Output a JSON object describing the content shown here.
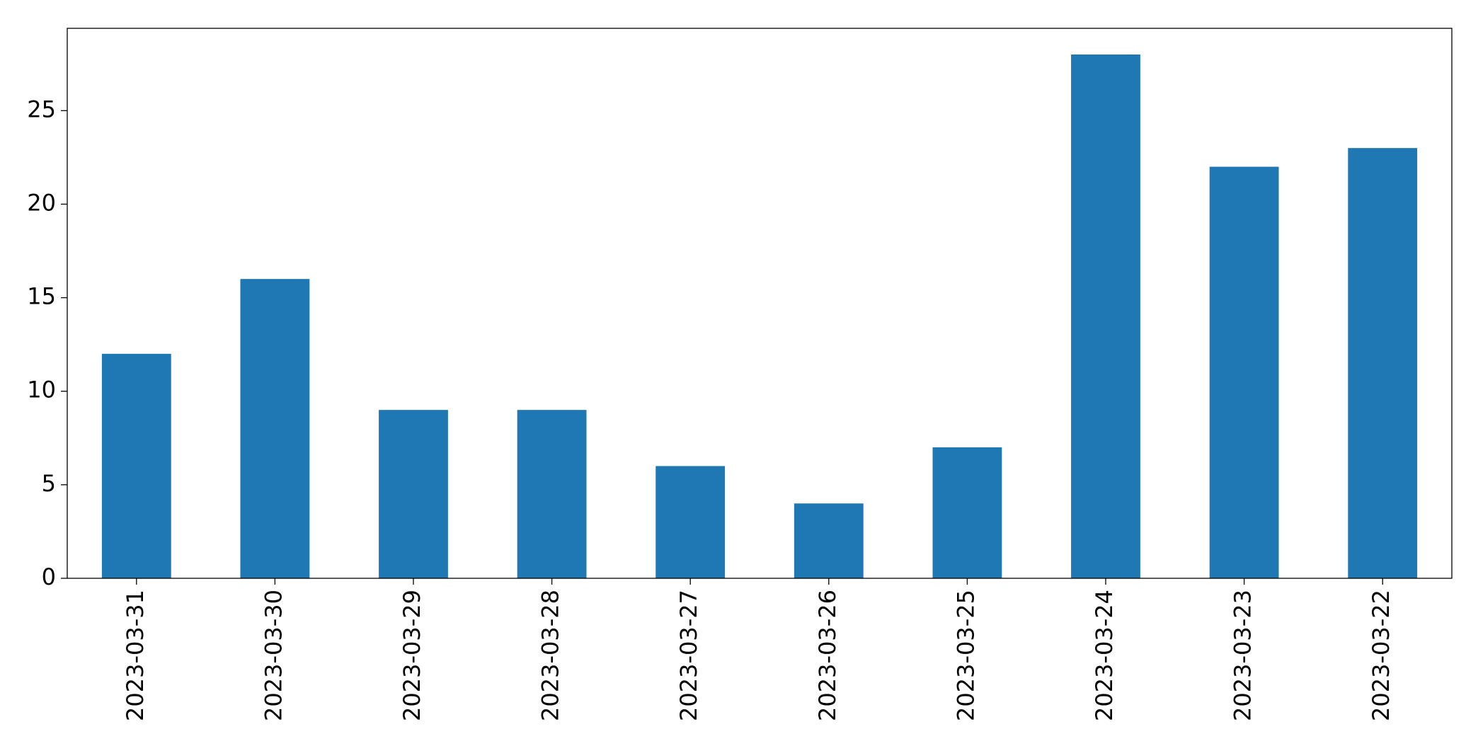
{
  "chart_data": {
    "type": "bar",
    "categories": [
      "2023-03-31",
      "2023-03-30",
      "2023-03-29",
      "2023-03-28",
      "2023-03-27",
      "2023-03-26",
      "2023-03-25",
      "2023-03-24",
      "2023-03-23",
      "2023-03-22"
    ],
    "values": [
      12,
      16,
      9,
      9,
      6,
      4,
      7,
      28,
      22,
      23
    ],
    "color": "#1f77b4",
    "ylim": [
      0,
      29.4
    ],
    "yticks": [
      0,
      5,
      10,
      15,
      20,
      25
    ],
    "grid": false
  }
}
